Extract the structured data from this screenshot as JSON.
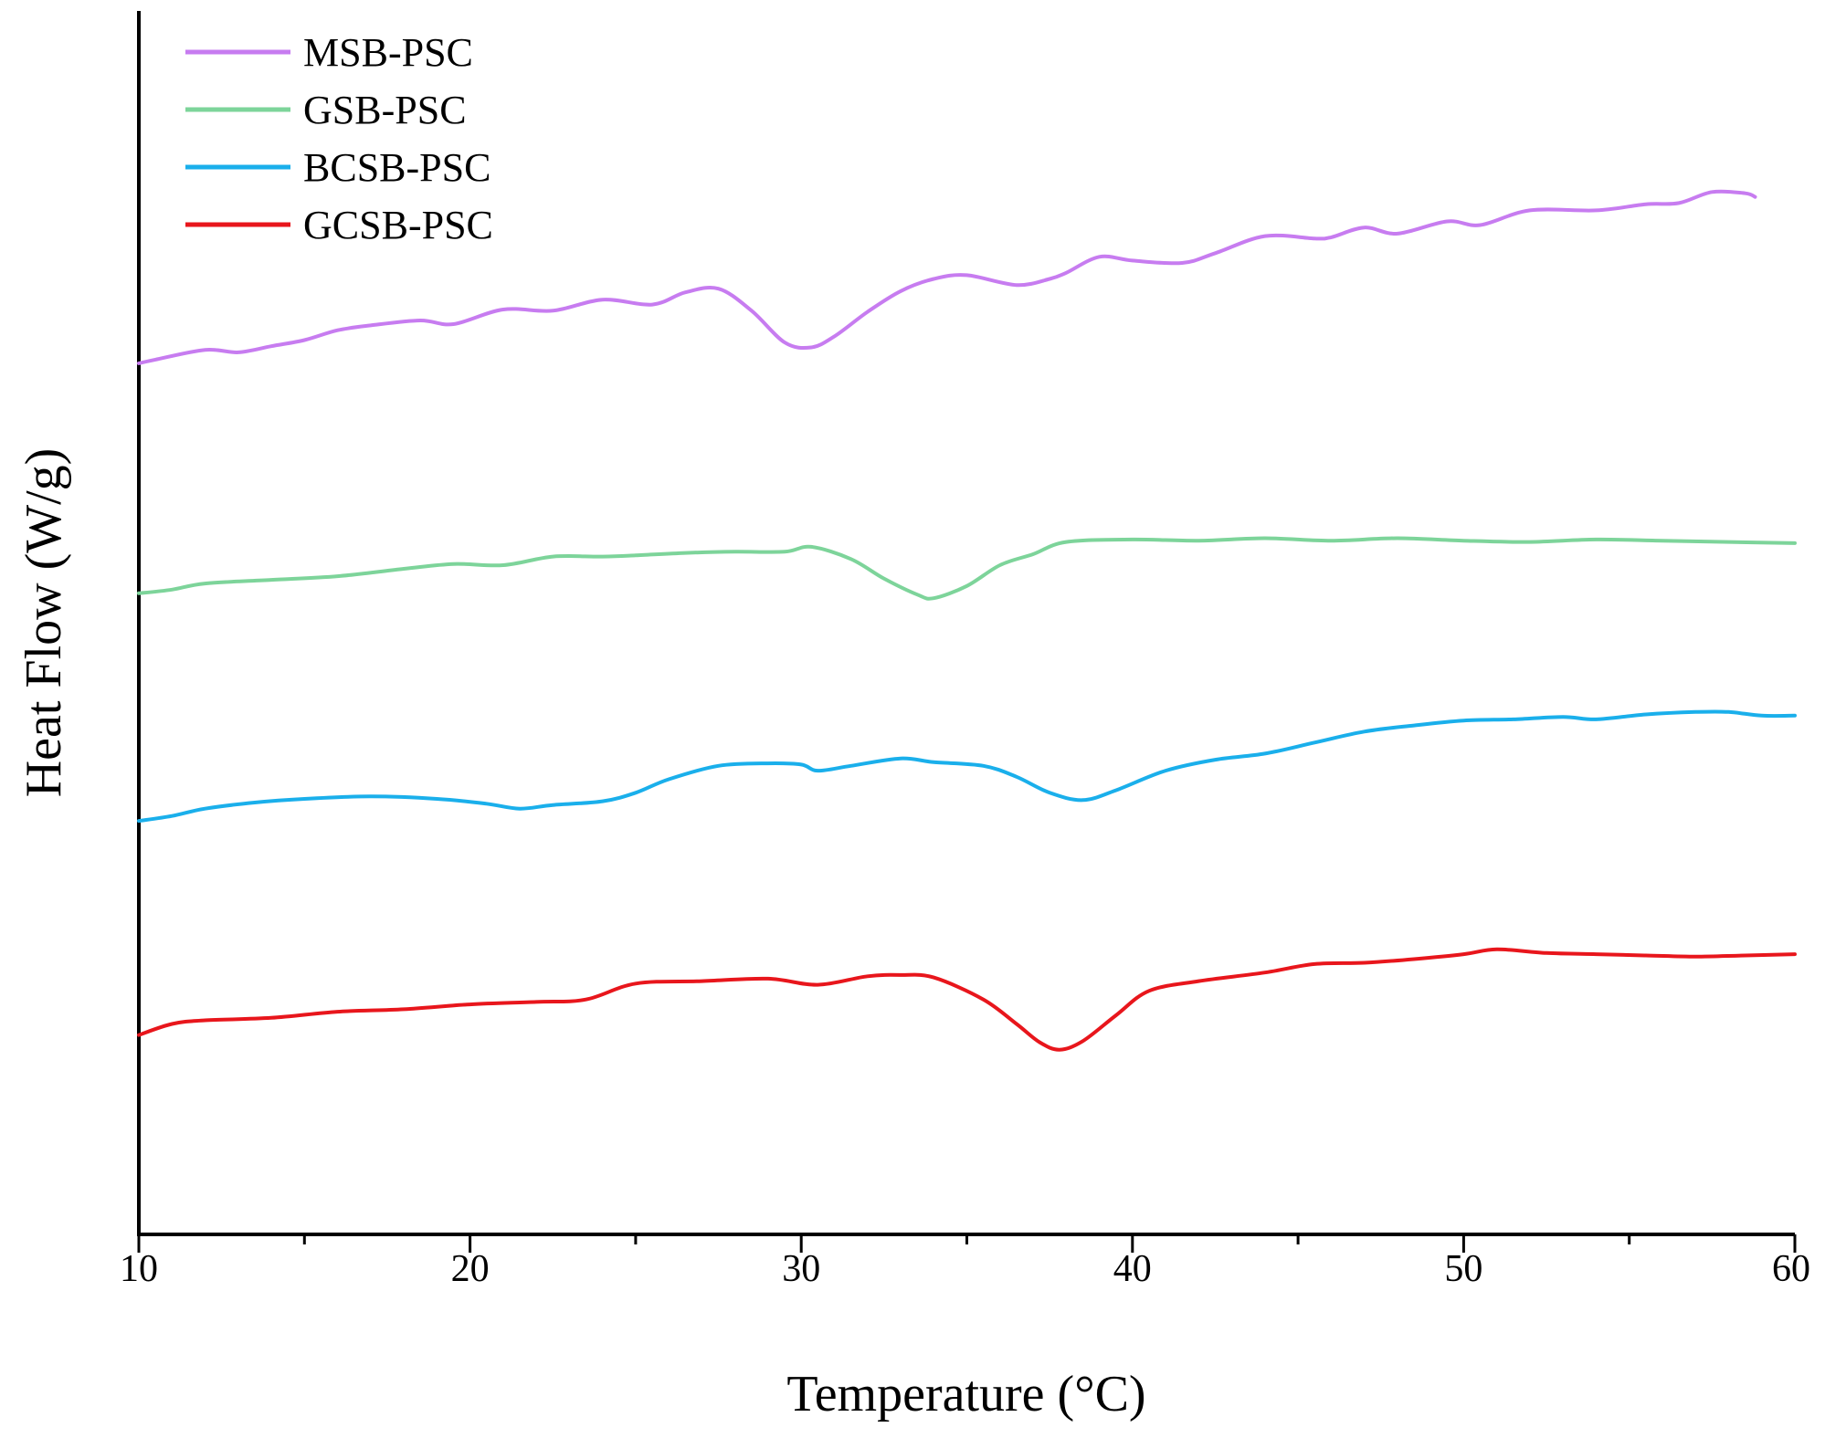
{
  "chart_data": {
    "type": "line",
    "title": "",
    "xlabel": "Temperature (°C)",
    "ylabel": "Heat Flow (W/g)",
    "xlim": [
      10,
      60
    ],
    "ylim": [
      0,
      100
    ],
    "xticks": [
      10,
      20,
      30,
      40,
      50,
      60
    ],
    "xtick_labels": [
      "10",
      "20",
      "30",
      "40",
      "50",
      "60"
    ],
    "y_ticks_shown": false,
    "grid": false,
    "legend_position": "top-left",
    "series": [
      {
        "name": "MSB-PSC",
        "color": "#C77CF0",
        "points": [
          [
            10,
            71.2
          ],
          [
            10.5,
            71.5
          ],
          [
            12,
            72.3
          ],
          [
            13,
            72.1
          ],
          [
            14,
            72.6
          ],
          [
            15,
            73.1
          ],
          [
            16,
            73.9
          ],
          [
            17,
            74.3
          ],
          [
            18.5,
            74.7
          ],
          [
            19.5,
            74.4
          ],
          [
            21,
            75.6
          ],
          [
            22.5,
            75.5
          ],
          [
            24,
            76.4
          ],
          [
            25.5,
            76.0
          ],
          [
            26.5,
            77.0
          ],
          [
            27.5,
            77.3
          ],
          [
            28.5,
            75.5
          ],
          [
            29.5,
            72.9
          ],
          [
            30.3,
            72.5
          ],
          [
            31,
            73.4
          ],
          [
            32,
            75.4
          ],
          [
            33,
            77.1
          ],
          [
            34,
            78.1
          ],
          [
            35,
            78.4
          ],
          [
            36.5,
            77.6
          ],
          [
            37.5,
            78.1
          ],
          [
            38,
            78.6
          ],
          [
            39,
            79.9
          ],
          [
            40,
            79.6
          ],
          [
            41.5,
            79.4
          ],
          [
            42.5,
            80.2
          ],
          [
            44,
            81.6
          ],
          [
            45.5,
            81.4
          ],
          [
            46,
            81.5
          ],
          [
            47,
            82.3
          ],
          [
            48,
            81.8
          ],
          [
            49.5,
            82.8
          ],
          [
            50.5,
            82.5
          ],
          [
            52,
            83.7
          ],
          [
            54,
            83.7
          ],
          [
            55.5,
            84.2
          ],
          [
            56.5,
            84.3
          ],
          [
            57.5,
            85.2
          ],
          [
            58.5,
            85.1
          ],
          [
            58.8,
            84.8
          ]
        ]
      },
      {
        "name": "GSB-PSC",
        "color": "#7DD49A",
        "points": [
          [
            10,
            52.4
          ],
          [
            11,
            52.7
          ],
          [
            12,
            53.2
          ],
          [
            14,
            53.5
          ],
          [
            16,
            53.8
          ],
          [
            18,
            54.4
          ],
          [
            19.5,
            54.8
          ],
          [
            21,
            54.7
          ],
          [
            22.5,
            55.4
          ],
          [
            24,
            55.4
          ],
          [
            25,
            55.5
          ],
          [
            26.5,
            55.7
          ],
          [
            28,
            55.8
          ],
          [
            29.5,
            55.8
          ],
          [
            30.3,
            56.2
          ],
          [
            31.5,
            55.2
          ],
          [
            32.5,
            53.6
          ],
          [
            33.5,
            52.3
          ],
          [
            34,
            52.0
          ],
          [
            35,
            53.0
          ],
          [
            36,
            54.7
          ],
          [
            37,
            55.6
          ],
          [
            38,
            56.6
          ],
          [
            40,
            56.8
          ],
          [
            42,
            56.7
          ],
          [
            44,
            56.9
          ],
          [
            46,
            56.7
          ],
          [
            48,
            56.9
          ],
          [
            50,
            56.7
          ],
          [
            52,
            56.6
          ],
          [
            54,
            56.8
          ],
          [
            56,
            56.7
          ],
          [
            58,
            56.6
          ],
          [
            60,
            56.5
          ]
        ]
      },
      {
        "name": "BCSB-PSC",
        "color": "#1AAFEB",
        "points": [
          [
            10,
            33.8
          ],
          [
            11,
            34.2
          ],
          [
            12,
            34.8
          ],
          [
            13.5,
            35.3
          ],
          [
            15,
            35.6
          ],
          [
            17,
            35.8
          ],
          [
            19,
            35.6
          ],
          [
            20.5,
            35.2
          ],
          [
            21.5,
            34.8
          ],
          [
            22.5,
            35.1
          ],
          [
            24,
            35.4
          ],
          [
            25,
            36.1
          ],
          [
            26,
            37.2
          ],
          [
            27.5,
            38.3
          ],
          [
            29,
            38.5
          ],
          [
            30,
            38.4
          ],
          [
            30.5,
            37.9
          ],
          [
            31.5,
            38.3
          ],
          [
            33,
            38.9
          ],
          [
            34,
            38.6
          ],
          [
            35.5,
            38.3
          ],
          [
            36.5,
            37.4
          ],
          [
            37.5,
            36.1
          ],
          [
            38.5,
            35.5
          ],
          [
            39.5,
            36.3
          ],
          [
            41,
            37.9
          ],
          [
            42.5,
            38.8
          ],
          [
            44,
            39.3
          ],
          [
            45.5,
            40.2
          ],
          [
            47,
            41.1
          ],
          [
            48.5,
            41.6
          ],
          [
            50,
            42.0
          ],
          [
            51.5,
            42.1
          ],
          [
            53,
            42.3
          ],
          [
            54,
            42.1
          ],
          [
            55.5,
            42.5
          ],
          [
            57,
            42.7
          ],
          [
            58,
            42.7
          ],
          [
            59,
            42.4
          ],
          [
            60,
            42.4
          ]
        ]
      },
      {
        "name": "GCSB-PSC",
        "color": "#E8161C",
        "points": [
          [
            10,
            16.3
          ],
          [
            11,
            17.2
          ],
          [
            12,
            17.5
          ],
          [
            14,
            17.7
          ],
          [
            16,
            18.2
          ],
          [
            18,
            18.4
          ],
          [
            20,
            18.8
          ],
          [
            22,
            19.0
          ],
          [
            23.5,
            19.2
          ],
          [
            25,
            20.5
          ],
          [
            27,
            20.7
          ],
          [
            29,
            20.9
          ],
          [
            30.5,
            20.4
          ],
          [
            32,
            21.1
          ],
          [
            33,
            21.2
          ],
          [
            34,
            21.0
          ],
          [
            35.5,
            19.2
          ],
          [
            36.5,
            17.2
          ],
          [
            37.2,
            15.7
          ],
          [
            37.8,
            15.1
          ],
          [
            38.5,
            15.8
          ],
          [
            39.5,
            17.9
          ],
          [
            40.5,
            19.9
          ],
          [
            42,
            20.7
          ],
          [
            44,
            21.4
          ],
          [
            45.5,
            22.1
          ],
          [
            47,
            22.2
          ],
          [
            48.5,
            22.5
          ],
          [
            50,
            22.9
          ],
          [
            51,
            23.3
          ],
          [
            52.5,
            23.0
          ],
          [
            54,
            22.9
          ],
          [
            55.5,
            22.8
          ],
          [
            57,
            22.7
          ],
          [
            58.5,
            22.8
          ],
          [
            60,
            22.9
          ]
        ]
      }
    ]
  }
}
